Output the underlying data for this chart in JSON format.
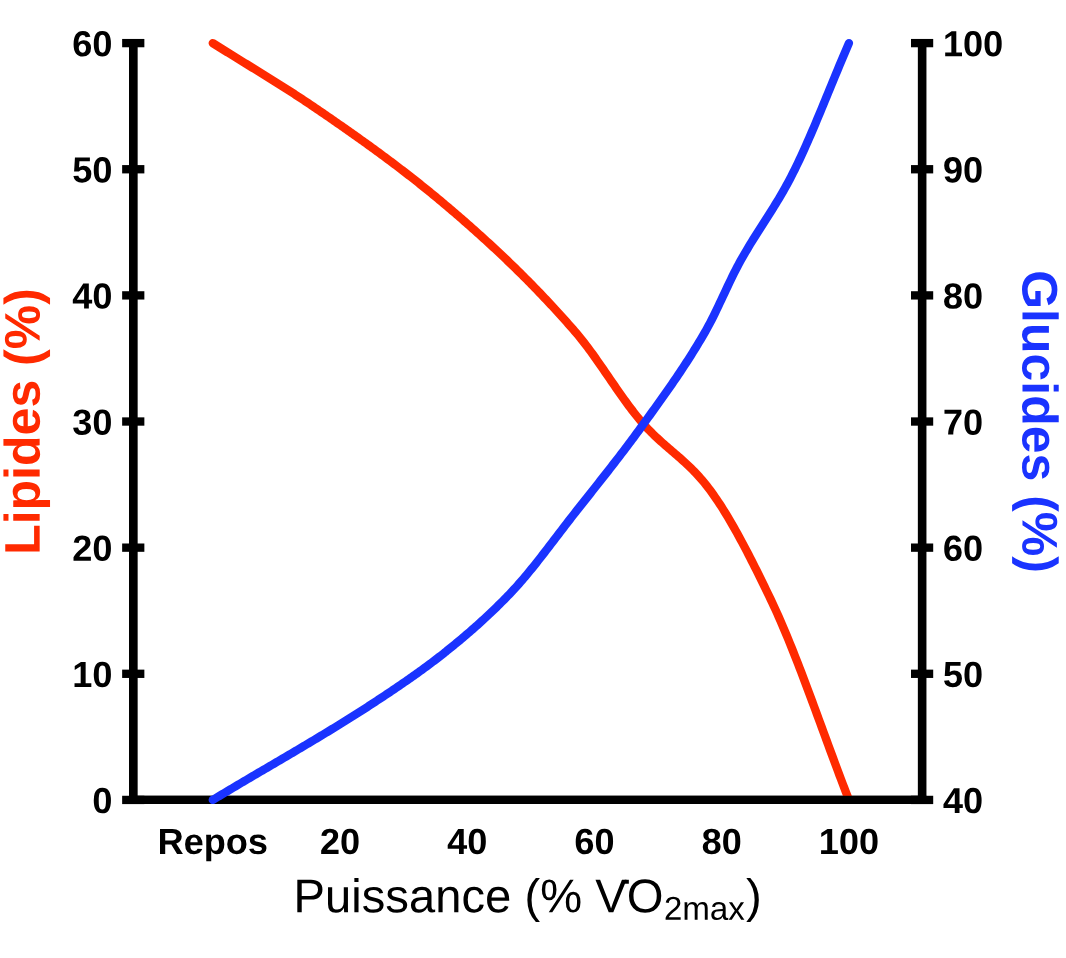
{
  "chart_data": {
    "type": "line",
    "xlabel": "Puissance (% V̇O$_{2max}$)",
    "ylabel": "Lipides (%)",
    "y2label": "Glucides (%)",
    "xlim": [
      -12.5,
      111.5
    ],
    "xticks": [
      {
        "value": 0,
        "label": "Repos"
      },
      20,
      40,
      60,
      80,
      100
    ],
    "ylim": [
      0,
      60
    ],
    "yticks": [
      0,
      10,
      20,
      30,
      40,
      50,
      60
    ],
    "y2lim": [
      40,
      100
    ],
    "y2ticks": [
      40,
      50,
      60,
      70,
      80,
      90,
      100
    ],
    "grid": false,
    "marker": "none",
    "line_style": "solid",
    "series": [
      {
        "color": "#ff2a00",
        "x": [
          0,
          16,
          36.5,
          57,
          67.7,
          77.5,
          87.7,
          100
        ],
        "values": [
          60,
          54.9,
          47.2,
          37.1,
          29.8,
          25.0,
          15.9,
          0
        ]
      },
      {
        "color": "#1a33ff",
        "axis": "y2",
        "x": [
          0,
          26.2,
          36.5,
          46.8,
          57,
          67.7,
          77.5,
          82.7,
          90.9,
          100
        ],
        "values": [
          40,
          48.0,
          51.7,
          56.4,
          62.8,
          69.8,
          77.2,
          82.5,
          89.4,
          100
        ]
      }
    ]
  }
}
